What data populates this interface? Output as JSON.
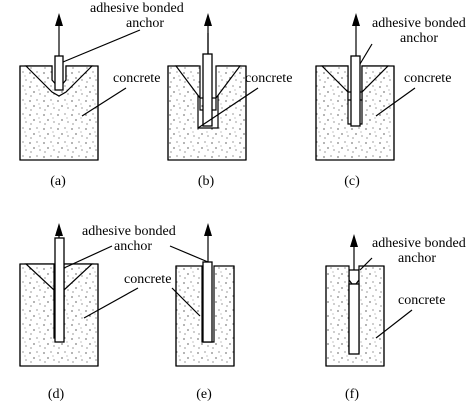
{
  "panels": [
    {
      "id": "a",
      "caption": "(a)",
      "label1": "adhesive bonded",
      "label2": "anchor",
      "label3": "concrete"
    },
    {
      "id": "b",
      "caption": "(b)",
      "label1": "",
      "label2": "",
      "label3": "concrete"
    },
    {
      "id": "c",
      "caption": "(c)",
      "label1": "adhesive bonded",
      "label2": "anchor",
      "label3": "concrete"
    },
    {
      "id": "d",
      "caption": "(d)",
      "label1": "adhesive bonded",
      "label2": "anchor",
      "label3": "concrete"
    },
    {
      "id": "e",
      "caption": "(e)",
      "label1": "",
      "label2": "",
      "label3": ""
    },
    {
      "id": "f",
      "caption": "(f)",
      "label1": "adhesive bonded",
      "label2": "anchor",
      "label3": "concrete"
    }
  ]
}
